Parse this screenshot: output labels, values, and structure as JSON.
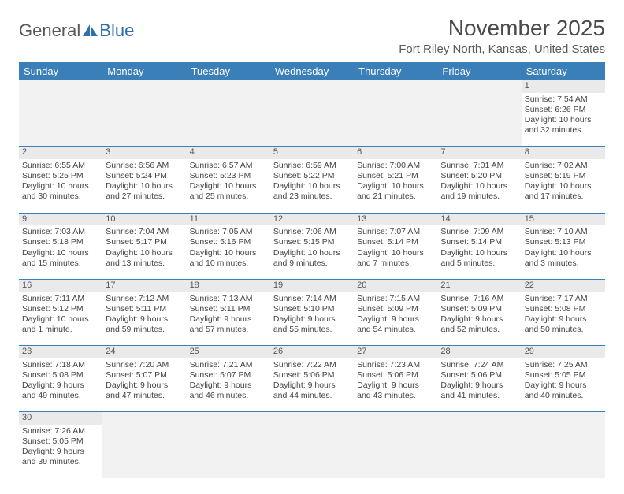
{
  "logo": {
    "text_a": "General",
    "text_b": "Blue"
  },
  "title": "November 2025",
  "location": "Fort Riley North, Kansas, United States",
  "colors": {
    "header_bg": "#3b7fb8",
    "header_text": "#ffffff",
    "daynum_bg": "#eaeaea",
    "rule": "#3b7fb8",
    "body_text": "#444444",
    "logo_gray": "#5a5a5a",
    "logo_blue": "#2f6fa8"
  },
  "weekdays": [
    "Sunday",
    "Monday",
    "Tuesday",
    "Wednesday",
    "Thursday",
    "Friday",
    "Saturday"
  ],
  "weeks": [
    [
      null,
      null,
      null,
      null,
      null,
      null,
      {
        "n": "1",
        "sr": "Sunrise: 7:54 AM",
        "ss": "Sunset: 6:26 PM",
        "dl1": "Daylight: 10 hours",
        "dl2": "and 32 minutes."
      }
    ],
    [
      {
        "n": "2",
        "sr": "Sunrise: 6:55 AM",
        "ss": "Sunset: 5:25 PM",
        "dl1": "Daylight: 10 hours",
        "dl2": "and 30 minutes."
      },
      {
        "n": "3",
        "sr": "Sunrise: 6:56 AM",
        "ss": "Sunset: 5:24 PM",
        "dl1": "Daylight: 10 hours",
        "dl2": "and 27 minutes."
      },
      {
        "n": "4",
        "sr": "Sunrise: 6:57 AM",
        "ss": "Sunset: 5:23 PM",
        "dl1": "Daylight: 10 hours",
        "dl2": "and 25 minutes."
      },
      {
        "n": "5",
        "sr": "Sunrise: 6:59 AM",
        "ss": "Sunset: 5:22 PM",
        "dl1": "Daylight: 10 hours",
        "dl2": "and 23 minutes."
      },
      {
        "n": "6",
        "sr": "Sunrise: 7:00 AM",
        "ss": "Sunset: 5:21 PM",
        "dl1": "Daylight: 10 hours",
        "dl2": "and 21 minutes."
      },
      {
        "n": "7",
        "sr": "Sunrise: 7:01 AM",
        "ss": "Sunset: 5:20 PM",
        "dl1": "Daylight: 10 hours",
        "dl2": "and 19 minutes."
      },
      {
        "n": "8",
        "sr": "Sunrise: 7:02 AM",
        "ss": "Sunset: 5:19 PM",
        "dl1": "Daylight: 10 hours",
        "dl2": "and 17 minutes."
      }
    ],
    [
      {
        "n": "9",
        "sr": "Sunrise: 7:03 AM",
        "ss": "Sunset: 5:18 PM",
        "dl1": "Daylight: 10 hours",
        "dl2": "and 15 minutes."
      },
      {
        "n": "10",
        "sr": "Sunrise: 7:04 AM",
        "ss": "Sunset: 5:17 PM",
        "dl1": "Daylight: 10 hours",
        "dl2": "and 13 minutes."
      },
      {
        "n": "11",
        "sr": "Sunrise: 7:05 AM",
        "ss": "Sunset: 5:16 PM",
        "dl1": "Daylight: 10 hours",
        "dl2": "and 10 minutes."
      },
      {
        "n": "12",
        "sr": "Sunrise: 7:06 AM",
        "ss": "Sunset: 5:15 PM",
        "dl1": "Daylight: 10 hours",
        "dl2": "and 9 minutes."
      },
      {
        "n": "13",
        "sr": "Sunrise: 7:07 AM",
        "ss": "Sunset: 5:14 PM",
        "dl1": "Daylight: 10 hours",
        "dl2": "and 7 minutes."
      },
      {
        "n": "14",
        "sr": "Sunrise: 7:09 AM",
        "ss": "Sunset: 5:14 PM",
        "dl1": "Daylight: 10 hours",
        "dl2": "and 5 minutes."
      },
      {
        "n": "15",
        "sr": "Sunrise: 7:10 AM",
        "ss": "Sunset: 5:13 PM",
        "dl1": "Daylight: 10 hours",
        "dl2": "and 3 minutes."
      }
    ],
    [
      {
        "n": "16",
        "sr": "Sunrise: 7:11 AM",
        "ss": "Sunset: 5:12 PM",
        "dl1": "Daylight: 10 hours",
        "dl2": "and 1 minute."
      },
      {
        "n": "17",
        "sr": "Sunrise: 7:12 AM",
        "ss": "Sunset: 5:11 PM",
        "dl1": "Daylight: 9 hours",
        "dl2": "and 59 minutes."
      },
      {
        "n": "18",
        "sr": "Sunrise: 7:13 AM",
        "ss": "Sunset: 5:11 PM",
        "dl1": "Daylight: 9 hours",
        "dl2": "and 57 minutes."
      },
      {
        "n": "19",
        "sr": "Sunrise: 7:14 AM",
        "ss": "Sunset: 5:10 PM",
        "dl1": "Daylight: 9 hours",
        "dl2": "and 55 minutes."
      },
      {
        "n": "20",
        "sr": "Sunrise: 7:15 AM",
        "ss": "Sunset: 5:09 PM",
        "dl1": "Daylight: 9 hours",
        "dl2": "and 54 minutes."
      },
      {
        "n": "21",
        "sr": "Sunrise: 7:16 AM",
        "ss": "Sunset: 5:09 PM",
        "dl1": "Daylight: 9 hours",
        "dl2": "and 52 minutes."
      },
      {
        "n": "22",
        "sr": "Sunrise: 7:17 AM",
        "ss": "Sunset: 5:08 PM",
        "dl1": "Daylight: 9 hours",
        "dl2": "and 50 minutes."
      }
    ],
    [
      {
        "n": "23",
        "sr": "Sunrise: 7:18 AM",
        "ss": "Sunset: 5:08 PM",
        "dl1": "Daylight: 9 hours",
        "dl2": "and 49 minutes."
      },
      {
        "n": "24",
        "sr": "Sunrise: 7:20 AM",
        "ss": "Sunset: 5:07 PM",
        "dl1": "Daylight: 9 hours",
        "dl2": "and 47 minutes."
      },
      {
        "n": "25",
        "sr": "Sunrise: 7:21 AM",
        "ss": "Sunset: 5:07 PM",
        "dl1": "Daylight: 9 hours",
        "dl2": "and 46 minutes."
      },
      {
        "n": "26",
        "sr": "Sunrise: 7:22 AM",
        "ss": "Sunset: 5:06 PM",
        "dl1": "Daylight: 9 hours",
        "dl2": "and 44 minutes."
      },
      {
        "n": "27",
        "sr": "Sunrise: 7:23 AM",
        "ss": "Sunset: 5:06 PM",
        "dl1": "Daylight: 9 hours",
        "dl2": "and 43 minutes."
      },
      {
        "n": "28",
        "sr": "Sunrise: 7:24 AM",
        "ss": "Sunset: 5:06 PM",
        "dl1": "Daylight: 9 hours",
        "dl2": "and 41 minutes."
      },
      {
        "n": "29",
        "sr": "Sunrise: 7:25 AM",
        "ss": "Sunset: 5:05 PM",
        "dl1": "Daylight: 9 hours",
        "dl2": "and 40 minutes."
      }
    ],
    [
      {
        "n": "30",
        "sr": "Sunrise: 7:26 AM",
        "ss": "Sunset: 5:05 PM",
        "dl1": "Daylight: 9 hours",
        "dl2": "and 39 minutes."
      },
      null,
      null,
      null,
      null,
      null,
      null
    ]
  ]
}
